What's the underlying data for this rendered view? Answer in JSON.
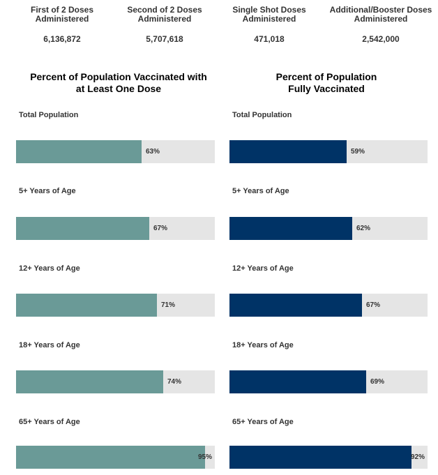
{
  "stats": [
    {
      "label_line1": "First of 2 Doses",
      "label_line2": "Administered",
      "value": "6,136,872"
    },
    {
      "label_line1": "Second of 2 Doses",
      "label_line2": "Administered",
      "value": "5,707,618"
    },
    {
      "label_line1": "Single Shot Doses",
      "label_line2": "Administered",
      "value": "471,018"
    },
    {
      "label_line1": "Additional/Booster Doses",
      "label_line2": "Administered",
      "value": "2,542,000"
    }
  ],
  "chart_data": [
    {
      "type": "bar",
      "orientation": "horizontal",
      "title_line1": "Percent of Population Vaccinated with",
      "title_line2": "at Least One Dose",
      "color": "#6a9a97",
      "track_color": "#e5e5e5",
      "xlim": [
        0,
        100
      ],
      "categories": [
        "Total Population",
        "5+ Years of Age",
        "12+ Years of Age",
        "18+ Years of Age",
        "65+ Years of Age"
      ],
      "values": [
        63,
        67,
        71,
        74,
        95
      ],
      "value_labels": [
        "63%",
        "67%",
        "71%",
        "74%",
        "95%"
      ]
    },
    {
      "type": "bar",
      "orientation": "horizontal",
      "title_line1": "Percent of Population",
      "title_line2": "Fully Vaccinated",
      "color": "#003366",
      "track_color": "#e5e5e5",
      "xlim": [
        0,
        100
      ],
      "categories": [
        "Total Population",
        "5+ Years of Age",
        "12+ Years of Age",
        "18+ Years of Age",
        "65+ Years of Age"
      ],
      "values": [
        59,
        62,
        67,
        69,
        92
      ],
      "value_labels": [
        "59%",
        "62%",
        "67%",
        "69%",
        "92%"
      ]
    }
  ]
}
